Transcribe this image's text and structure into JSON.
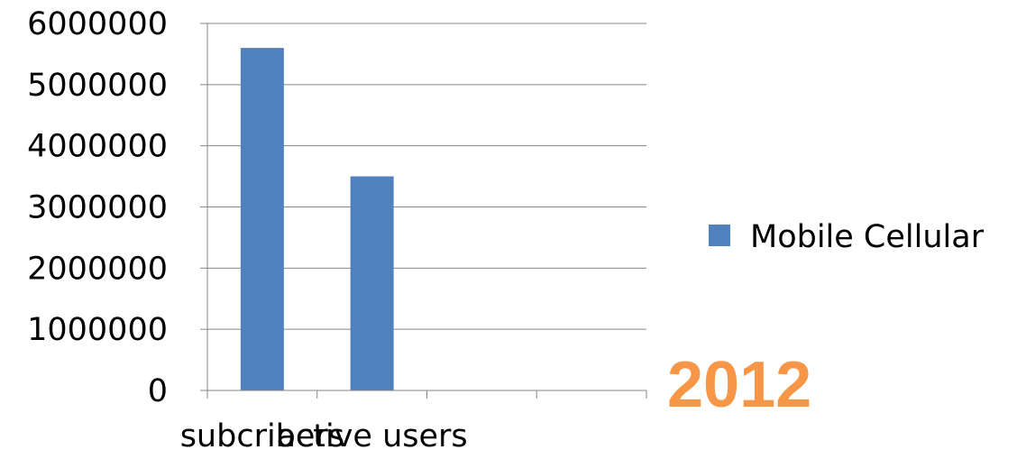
{
  "chart_data": {
    "type": "bar",
    "categories": [
      "subcribers",
      "active users",
      "",
      ""
    ],
    "series": [
      {
        "name": "Mobile Cellular",
        "values": [
          5600000,
          3500000,
          null,
          null
        ],
        "color": "#4F81BD"
      }
    ],
    "y_ticks": [
      "0",
      "1000000",
      "2000000",
      "3000000",
      "4000000",
      "5000000",
      "6000000"
    ],
    "ylim": [
      0,
      6000000
    ],
    "grid": true,
    "legend_position": "right",
    "title": "",
    "xlabel": "",
    "ylabel": ""
  },
  "annotation": {
    "text": "2012",
    "color": "#F79646"
  },
  "colors": {
    "gridline": "#868686",
    "axis": "#868686"
  }
}
